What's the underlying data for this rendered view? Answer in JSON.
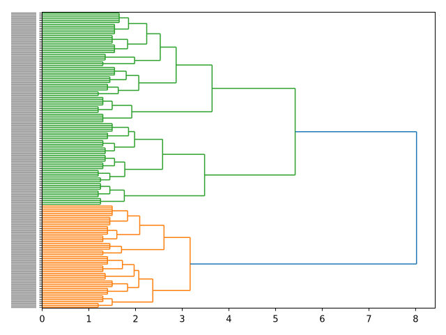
{
  "chart_data": {
    "type": "dendrogram",
    "orientation": "left",
    "title": "",
    "xlabel": "",
    "ylabel": "",
    "xlim": [
      0,
      8.42
    ],
    "xticks": [
      "0",
      "1",
      "2",
      "3",
      "4",
      "5",
      "6",
      "7",
      "8"
    ],
    "colors": {
      "cluster1": "#2ca02c",
      "cluster2": "#ff7f0e",
      "above_threshold": "#1f77b4"
    },
    "tree": {
      "h": 8.02,
      "color": "above_threshold",
      "c": [
        {
          "h": 5.42,
          "color": "cluster1",
          "c": [
            {
              "h": 3.64,
              "c": [
                {
                  "h": 2.87,
                  "c": [
                    {
                      "h": 2.53,
                      "c": [
                        {
                          "h": 2.24,
                          "c": [
                            {
                              "h": 1.85,
                              "c": [
                                {
                                  "n": 6,
                                  "h": 1.65
                                },
                                {
                                  "n": 6,
                                  "h": 1.55
                                }
                              ]
                            },
                            {
                              "h": 1.83,
                              "c": [
                                {
                                  "n": 5,
                                  "h": 1.5
                                },
                                {
                                  "n": 5,
                                  "h": 1.55
                                }
                              ]
                            }
                          ]
                        },
                        {
                          "h": 1.98,
                          "c": [
                            {
                              "n": 4,
                              "h": 1.35
                            },
                            {
                              "n": 3,
                              "h": 1.3
                            }
                          ]
                        }
                      ]
                    },
                    {
                      "h": 2.07,
                      "c": [
                        {
                          "h": 1.8,
                          "c": [
                            {
                              "n": 5,
                              "h": 1.55
                            },
                            {
                              "n": 4,
                              "h": 1.45
                            }
                          ]
                        },
                        {
                          "h": 1.63,
                          "c": [
                            {
                              "n": 4,
                              "h": 1.4
                            },
                            {
                              "n": 3,
                              "h": 1.2
                            }
                          ]
                        }
                      ]
                    }
                  ]
                },
                {
                  "h": 1.92,
                  "c": [
                    {
                      "h": 1.5,
                      "c": [
                        {
                          "n": 5,
                          "h": 1.3
                        },
                        {
                          "n": 4,
                          "h": 1.2
                        }
                      ]
                    },
                    {
                      "n": 5,
                      "h": 1.3
                    }
                  ]
                }
              ]
            },
            {
              "h": 3.48,
              "c": [
                {
                  "h": 2.58,
                  "c": [
                    {
                      "h": 1.98,
                      "c": [
                        {
                          "h": 1.85,
                          "c": [
                            {
                              "n": 5,
                              "h": 1.5
                            },
                            {
                              "n": 4,
                              "h": 1.4
                            }
                          ]
                        },
                        {
                          "h": 1.55,
                          "c": [
                            {
                              "n": 4,
                              "h": 1.3
                            },
                            {
                              "n": 4,
                              "h": 1.35
                            }
                          ]
                        }
                      ]
                    },
                    {
                      "h": 1.77,
                      "c": [
                        {
                          "h": 1.55,
                          "c": [
                            {
                              "n": 4,
                              "h": 1.35
                            },
                            {
                              "n": 4,
                              "h": 1.3
                            }
                          ]
                        },
                        {
                          "h": 1.45,
                          "c": [
                            {
                              "n": 4,
                              "h": 1.2
                            },
                            {
                              "n": 3,
                              "h": 1.25
                            }
                          ]
                        }
                      ]
                    }
                  ]
                },
                {
                  "h": 1.76,
                  "c": [
                    {
                      "h": 1.45,
                      "c": [
                        {
                          "n": 4,
                          "h": 1.25
                        },
                        {
                          "n": 4,
                          "h": 1.2
                        }
                      ]
                    },
                    {
                      "n": 4,
                      "h": 1.25
                    }
                  ]
                }
              ]
            }
          ]
        },
        {
          "h": 3.17,
          "color": "cluster2",
          "c": [
            {
              "h": 2.61,
              "c": [
                {
                  "h": 2.09,
                  "c": [
                    {
                      "h": 1.83,
                      "c": [
                        {
                          "n": 6,
                          "h": 1.5
                        },
                        {
                          "n": 5,
                          "h": 1.45
                        }
                      ]
                    },
                    {
                      "h": 1.6,
                      "c": [
                        {
                          "n": 5,
                          "h": 1.4
                        },
                        {
                          "n": 4,
                          "h": 1.3
                        }
                      ]
                    }
                  ]
                },
                {
                  "h": 1.7,
                  "c": [
                    {
                      "n": 4,
                      "h": 1.45
                    },
                    {
                      "n": 3,
                      "h": 1.3
                    }
                  ]
                }
              ]
            },
            {
              "h": 2.37,
              "c": [
                {
                  "h": 2.07,
                  "c": [
                    {
                      "h": 1.97,
                      "c": [
                        {
                          "h": 1.72,
                          "c": [
                            {
                              "n": 5,
                              "h": 1.4
                            },
                            {
                              "n": 4,
                              "h": 1.3
                            }
                          ]
                        },
                        {
                          "n": 4,
                          "h": 1.35
                        }
                      ]
                    },
                    {
                      "h": 1.83,
                      "c": [
                        {
                          "n": 4,
                          "h": 1.5
                        },
                        {
                          "n": 4,
                          "h": 1.4
                        }
                      ]
                    }
                  ]
                },
                {
                  "h": 1.5,
                  "c": [
                    {
                      "n": 4,
                      "h": 1.3
                    },
                    {
                      "n": 3,
                      "h": 1.2
                    }
                  ]
                }
              ]
            }
          ]
        }
      ]
    }
  }
}
